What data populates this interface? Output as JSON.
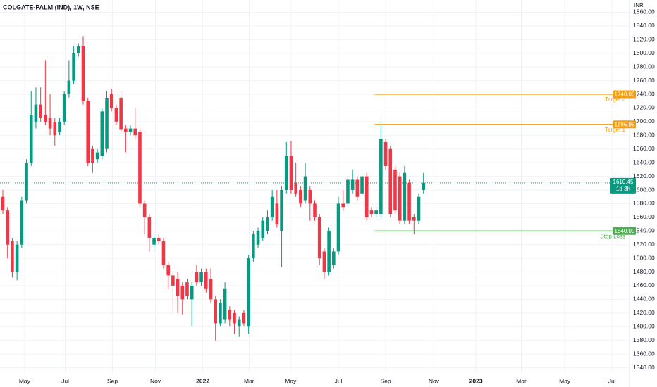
{
  "chart_data": {
    "type": "candlestick",
    "title": "COLGATE-PALM (IND), 1W, NSE",
    "currency": "INR",
    "open": [
      1590,
      1570,
      1525,
      1480,
      1520,
      1585,
      1640,
      1700,
      1725,
      1710,
      1705,
      1700,
      1685,
      1700,
      1740,
      1760,
      1800,
      1810,
      1730,
      1660,
      1645,
      1650,
      1660,
      1740,
      1720,
      1735,
      1690,
      1685,
      1690,
      1685,
      1580,
      1560,
      1520,
      1530,
      1525,
      1490,
      1475,
      1470,
      1460,
      1465,
      1440,
      1480,
      1465,
      1480,
      1470,
      1440,
      1405,
      1410,
      1425,
      1420,
      1400,
      1420,
      1400,
      1500,
      1520,
      1530,
      1540,
      1560,
      1580,
      1540,
      1600,
      1650,
      1610,
      1600,
      1585,
      1600,
      1580,
      1560,
      1510,
      1480,
      1490,
      1510,
      1580,
      1580,
      1600,
      1615,
      1595,
      1620,
      1570,
      1565,
      1565,
      1670,
      1660,
      1630,
      1620,
      1555,
      1610,
      1560,
      1555,
      1600
    ],
    "high": [
      1600,
      1575,
      1530,
      1525,
      1590,
      1645,
      1745,
      1750,
      1750,
      1790,
      1740,
      1705,
      1705,
      1745,
      1790,
      1810,
      1815,
      1825,
      1735,
      1665,
      1660,
      1720,
      1745,
      1748,
      1725,
      1745,
      1695,
      1695,
      1720,
      1690,
      1585,
      1565,
      1535,
      1535,
      1530,
      1495,
      1480,
      1480,
      1465,
      1470,
      1465,
      1490,
      1485,
      1485,
      1485,
      1445,
      1440,
      1465,
      1430,
      1425,
      1415,
      1425,
      1505,
      1540,
      1545,
      1560,
      1570,
      1600,
      1600,
      1605,
      1670,
      1672,
      1640,
      1605,
      1640,
      1605,
      1585,
      1565,
      1515,
      1545,
      1515,
      1590,
      1600,
      1620,
      1630,
      1620,
      1625,
      1625,
      1575,
      1575,
      1700,
      1675,
      1665,
      1635,
      1625,
      1635,
      1615,
      1565,
      1595,
      1625
    ],
    "low": [
      1565,
      1500,
      1472,
      1468,
      1515,
      1580,
      1635,
      1690,
      1700,
      1695,
      1680,
      1665,
      1680,
      1695,
      1735,
      1755,
      1795,
      1725,
      1635,
      1625,
      1640,
      1645,
      1655,
      1715,
      1695,
      1685,
      1655,
      1680,
      1675,
      1575,
      1535,
      1510,
      1515,
      1520,
      1485,
      1455,
      1420,
      1420,
      1418,
      1440,
      1400,
      1460,
      1460,
      1450,
      1435,
      1380,
      1400,
      1405,
      1400,
      1390,
      1385,
      1400,
      1390,
      1495,
      1515,
      1525,
      1535,
      1555,
      1545,
      1487,
      1595,
      1595,
      1590,
      1575,
      1580,
      1555,
      1555,
      1490,
      1470,
      1475,
      1485,
      1505,
      1570,
      1575,
      1595,
      1585,
      1590,
      1555,
      1560,
      1560,
      1560,
      1630,
      1560,
      1565,
      1550,
      1550,
      1550,
      1535,
      1550,
      1595
    ],
    "close": [
      1570,
      1520,
      1480,
      1520,
      1585,
      1640,
      1710,
      1725,
      1705,
      1700,
      1690,
      1680,
      1700,
      1740,
      1760,
      1800,
      1810,
      1730,
      1640,
      1640,
      1655,
      1715,
      1735,
      1720,
      1700,
      1688,
      1685,
      1690,
      1680,
      1580,
      1560,
      1530,
      1530,
      1525,
      1490,
      1475,
      1460,
      1445,
      1440,
      1445,
      1460,
      1465,
      1480,
      1455,
      1440,
      1405,
      1435,
      1455,
      1410,
      1405,
      1410,
      1405,
      1500,
      1535,
      1540,
      1555,
      1560,
      1590,
      1550,
      1600,
      1650,
      1600,
      1595,
      1580,
      1620,
      1580,
      1560,
      1500,
      1480,
      1540,
      1510,
      1580,
      1575,
      1615,
      1615,
      1590,
      1620,
      1560,
      1565,
      1570,
      1675,
      1635,
      1565,
      1570,
      1555,
      1625,
      1555,
      1555,
      1590,
      1610.45
    ],
    "up_color": "#089981",
    "down_color": "#f23645",
    "xlim": [
      -0.6,
      132.6
    ],
    "xticks": [
      {
        "value": 4.6,
        "label": "May"
      },
      {
        "value": 13.2,
        "label": "Jul"
      },
      {
        "value": 23.2,
        "label": "Sep"
      },
      {
        "value": 32.3,
        "label": "Nov"
      },
      {
        "value": 42.3,
        "label": "2022"
      },
      {
        "value": 52.1,
        "label": "Mar"
      },
      {
        "value": 60.9,
        "label": "May"
      },
      {
        "value": 71,
        "label": "Jul"
      },
      {
        "value": 81,
        "label": "Sep"
      },
      {
        "value": 91.2,
        "label": "Nov"
      },
      {
        "value": 100.1,
        "label": "2023"
      },
      {
        "value": 109.7,
        "label": "Mar"
      },
      {
        "value": 118.9,
        "label": "May"
      },
      {
        "value": 128.9,
        "label": "Jul"
      }
    ],
    "ylim": [
      1322,
      1878
    ],
    "yticks": [
      {
        "value": 1340,
        "label": "1340.00"
      },
      {
        "value": 1360,
        "label": "1360.00"
      },
      {
        "value": 1380,
        "label": "1380.00"
      },
      {
        "value": 1400,
        "label": "1400.00"
      },
      {
        "value": 1420,
        "label": "1420.00"
      },
      {
        "value": 1440,
        "label": "1440.00"
      },
      {
        "value": 1460,
        "label": "1460.00"
      },
      {
        "value": 1480,
        "label": "1480.00"
      },
      {
        "value": 1500,
        "label": "1500.00"
      },
      {
        "value": 1520,
        "label": "1520.00"
      },
      {
        "value": 1540,
        "label": "1540.00"
      },
      {
        "value": 1560,
        "label": "1560.00"
      },
      {
        "value": 1580,
        "label": "1580.00"
      },
      {
        "value": 1600,
        "label": "1600.00"
      },
      {
        "value": 1620,
        "label": "1620.00"
      },
      {
        "value": 1640,
        "label": "1640.00"
      },
      {
        "value": 1660,
        "label": "1660.00"
      },
      {
        "value": 1680,
        "label": "1680.00"
      },
      {
        "value": 1700,
        "label": "1700.00"
      },
      {
        "value": 1720,
        "label": "1720.00"
      },
      {
        "value": 1740,
        "label": "1740.00"
      },
      {
        "value": 1760,
        "label": "1760.00"
      },
      {
        "value": 1780,
        "label": "1780.00"
      },
      {
        "value": 1800,
        "label": "1800.00"
      },
      {
        "value": 1820,
        "label": "1820.00"
      },
      {
        "value": 1840,
        "label": "1840.00"
      },
      {
        "value": 1860,
        "label": "1860.00"
      }
    ],
    "grid": true,
    "levels": [
      {
        "name": "Target 2",
        "value": 1740,
        "label": "1740.00",
        "from": 78.7,
        "color": "#f59d0f"
      },
      {
        "name": "Target 1",
        "value": 1695.95,
        "label": "1695.95",
        "from": 78.7,
        "color": "#f59d0f"
      },
      {
        "name": "Stop Loss",
        "value": 1540,
        "label": "1540.00",
        "from": 78.7,
        "color": "#4caf50"
      }
    ],
    "last": {
      "value": 1610.45,
      "label": "1610.45",
      "countdown": "1d 3h"
    }
  }
}
